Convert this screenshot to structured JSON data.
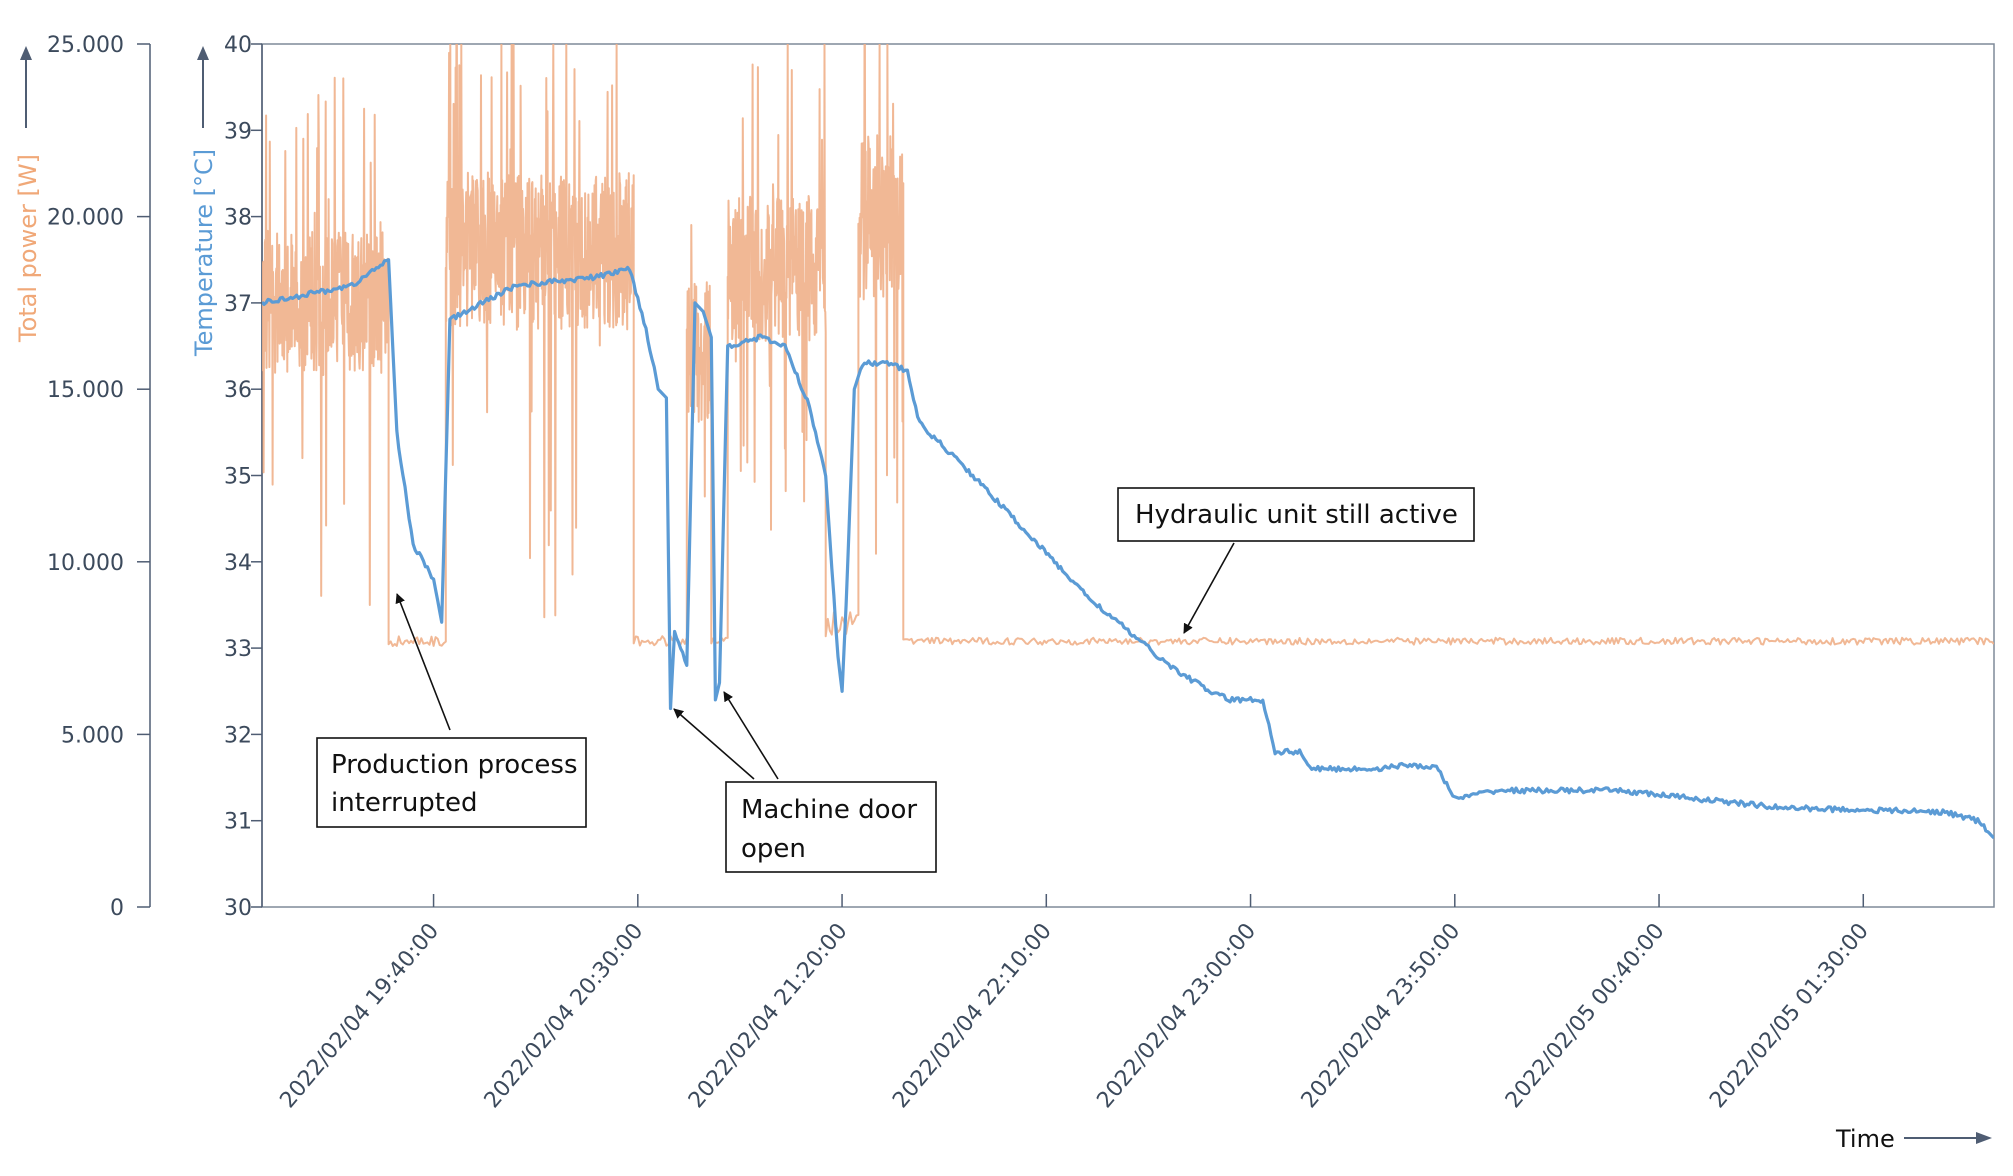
{
  "colors": {
    "power": "#f0b08a",
    "temperature": "#5b9bd5",
    "axis": "#4f5d73",
    "frame": "#7f8a99",
    "text": "#3c4a5c"
  },
  "chart_data": {
    "type": "line",
    "title": "",
    "grid": false,
    "legend": "none",
    "xlabel": "Time",
    "x_tick_labels": [
      "2022/02/04 19:40:00",
      "2022/02/04 20:30:00",
      "2022/02/04 21:20:00",
      "2022/02/04 22:10:00",
      "2022/02/04 23:00:00",
      "2022/02/04 23:50:00",
      "2022/02/05 00:40:00",
      "2022/02/05 01:30:00"
    ],
    "x_range_minutes": [
      -42,
      382
    ],
    "x_unit": "minutes after 2022/02/04 19:40:00",
    "y_left": {
      "label": "Total power [W]",
      "ticks": [
        "0",
        "5.000",
        "10.000",
        "15.000",
        "20.000",
        "25.000"
      ],
      "range": [
        0,
        25000
      ]
    },
    "y_right": {
      "label": "Temperature [°C]",
      "ticks": [
        "30",
        "31",
        "32",
        "33",
        "34",
        "35",
        "36",
        "37",
        "38",
        "39",
        "40"
      ],
      "range": [
        30,
        40
      ]
    },
    "series": [
      {
        "role": "power",
        "axis": "left",
        "segments": [
          {
            "x": [
              -42,
              -11
            ],
            "level": 17500,
            "noise": 3500
          },
          {
            "x": [
              -11,
              3
            ],
            "level": 7700,
            "noise": 150
          },
          {
            "x": [
              3,
              49
            ],
            "level": 19000,
            "noise": 3800
          },
          {
            "x": [
              49,
              62
            ],
            "level": 7700,
            "noise": 150
          },
          {
            "x": [
              62,
              68
            ],
            "level": 16000,
            "noise": 3500
          },
          {
            "x": [
              68,
              72
            ],
            "level": 7700,
            "noise": 150
          },
          {
            "x": [
              72,
              96
            ],
            "level": 18500,
            "noise": 3500
          },
          {
            "x": [
              96,
              104
            ],
            "level": 8200,
            "noise": 400
          },
          {
            "x": [
              104,
              115
            ],
            "level": 20000,
            "noise": 4000
          },
          {
            "x": [
              115,
              382
            ],
            "level": 7700,
            "noise": 100
          }
        ]
      },
      {
        "role": "temperature",
        "axis": "right",
        "points": [
          [
            -42,
            37.0
          ],
          [
            -20,
            37.2
          ],
          [
            -11,
            37.5
          ],
          [
            -9,
            35.5
          ],
          [
            -5,
            34.2
          ],
          [
            0,
            33.8
          ],
          [
            2,
            33.3
          ],
          [
            4,
            36.8
          ],
          [
            20,
            37.2
          ],
          [
            40,
            37.3
          ],
          [
            48,
            37.4
          ],
          [
            52,
            36.7
          ],
          [
            55,
            36.0
          ],
          [
            57,
            35.9
          ],
          [
            58,
            32.3
          ],
          [
            59,
            33.2
          ],
          [
            62,
            32.8
          ],
          [
            64,
            37.0
          ],
          [
            66,
            36.9
          ],
          [
            68,
            36.6
          ],
          [
            69,
            32.4
          ],
          [
            70,
            32.6
          ],
          [
            72,
            36.5
          ],
          [
            80,
            36.6
          ],
          [
            86,
            36.5
          ],
          [
            92,
            35.8
          ],
          [
            96,
            35.0
          ],
          [
            99,
            32.9
          ],
          [
            100,
            32.5
          ],
          [
            101,
            33.5
          ],
          [
            103,
            36.0
          ],
          [
            105,
            36.3
          ],
          [
            112,
            36.3
          ],
          [
            116,
            36.2
          ],
          [
            119,
            35.6
          ],
          [
            130,
            35.1
          ],
          [
            140,
            34.6
          ],
          [
            150,
            34.1
          ],
          [
            160,
            33.6
          ],
          [
            170,
            33.2
          ],
          [
            180,
            32.8
          ],
          [
            190,
            32.5
          ],
          [
            195,
            32.4
          ],
          [
            203,
            32.4
          ],
          [
            206,
            31.8
          ],
          [
            212,
            31.8
          ],
          [
            215,
            31.6
          ],
          [
            230,
            31.6
          ],
          [
            240,
            31.65
          ],
          [
            246,
            31.6
          ],
          [
            250,
            31.25
          ],
          [
            260,
            31.35
          ],
          [
            290,
            31.35
          ],
          [
            310,
            31.25
          ],
          [
            330,
            31.15
          ],
          [
            370,
            31.1
          ],
          [
            378,
            31.0
          ],
          [
            382,
            30.8
          ]
        ]
      }
    ],
    "annotations": [
      {
        "text": [
          "Production process",
          "interrupted"
        ]
      },
      {
        "text": [
          "Machine door",
          "open"
        ]
      },
      {
        "text": [
          "Hydraulic unit still active"
        ]
      }
    ]
  }
}
